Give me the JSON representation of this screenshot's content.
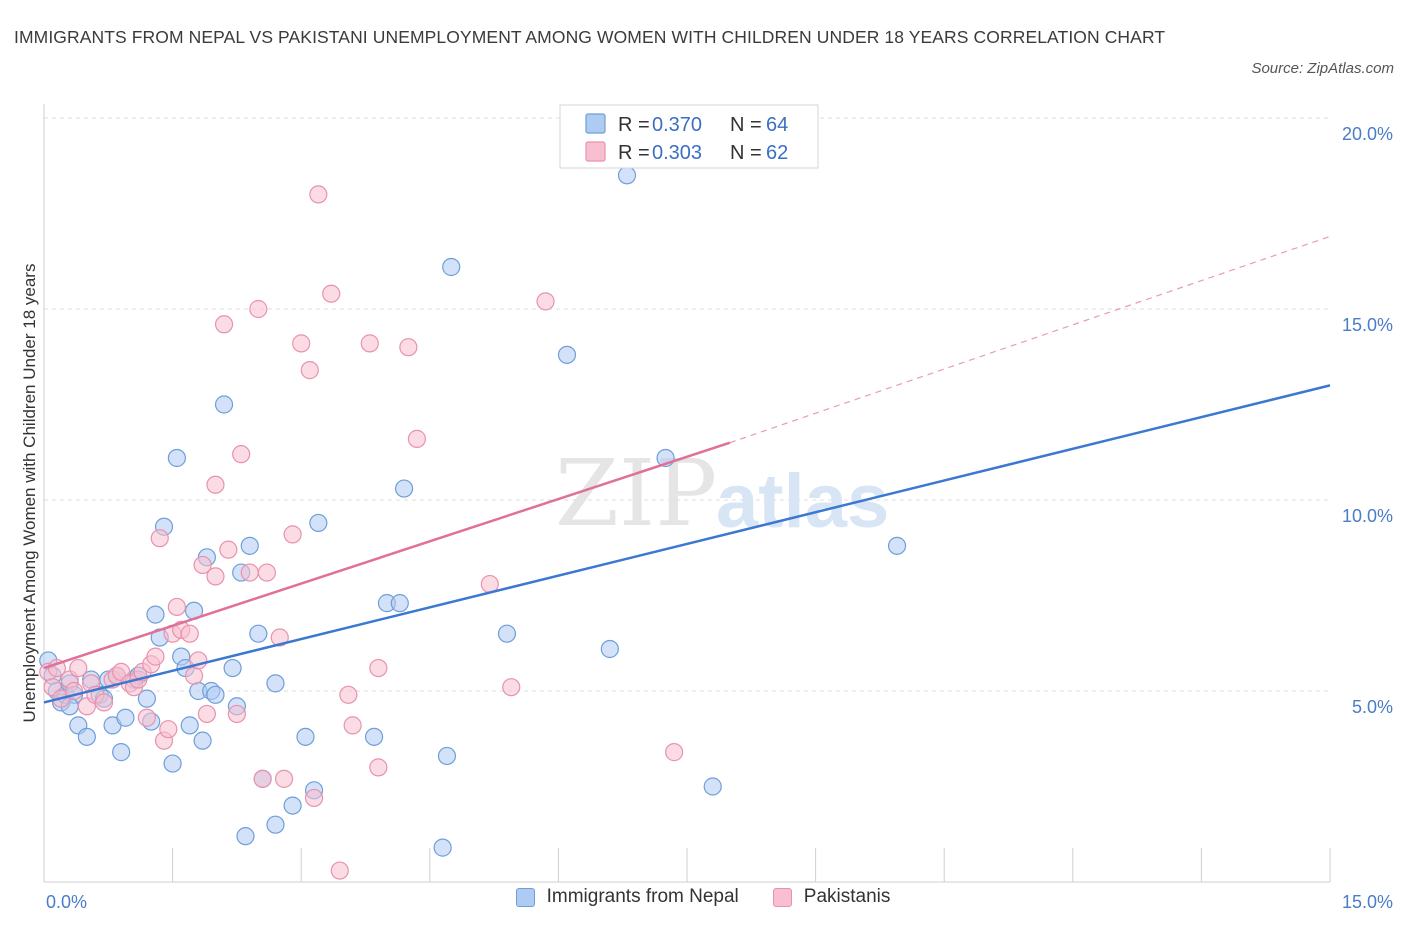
{
  "header": {
    "title": "IMMIGRANTS FROM NEPAL VS PAKISTANI UNEMPLOYMENT AMONG WOMEN WITH CHILDREN UNDER 18 YEARS CORRELATION CHART",
    "source": "Source: ZipAtlas.com"
  },
  "watermark": {
    "zip": "ZIP",
    "atlas": "atlas"
  },
  "legend": {
    "rows": [
      {
        "r_label": "R = ",
        "r_value": "0.370",
        "n_label": "N = ",
        "n_value": "64"
      },
      {
        "r_label": "R = ",
        "r_value": "0.303",
        "n_label": "N = ",
        "n_value": "62"
      }
    ]
  },
  "colors": {
    "nepal_fill": "#aecbf2",
    "nepal_stroke": "#6f9fd9",
    "nepal_line": "#3b78d0",
    "pak_fill": "#f7bfd0",
    "pak_stroke": "#e892ae",
    "pak_line": "#e07099",
    "grid": "#dddddd"
  },
  "chart_data": {
    "type": "scatter",
    "title": "IMMIGRANTS FROM NEPAL VS PAKISTANI UNEMPLOYMENT AMONG WOMEN WITH CHILDREN UNDER 18 YEARS CORRELATION CHART",
    "xlabel": "",
    "ylabel": "Unemployment Among Women with Children Under 18 years",
    "xlim": [
      0,
      15
    ],
    "ylim": [
      0,
      20
    ],
    "x_ticks": [
      "0.0%",
      "15.0%"
    ],
    "y_ticks": [
      {
        "value": 5,
        "label": "5.0%"
      },
      {
        "value": 10,
        "label": "10.0%"
      },
      {
        "value": 15,
        "label": "15.0%"
      },
      {
        "value": 20,
        "label": "20.0%"
      }
    ],
    "series": [
      {
        "name": "Immigrants from Nepal",
        "R": 0.37,
        "N": 64,
        "trend": {
          "x0": 0,
          "y0": 4.7,
          "x1": 15,
          "y1": 13.0
        },
        "points": [
          [
            0.05,
            5.8
          ],
          [
            0.1,
            5.4
          ],
          [
            0.15,
            5.0
          ],
          [
            0.2,
            4.7
          ],
          [
            0.25,
            4.9
          ],
          [
            0.3,
            5.2
          ],
          [
            0.35,
            4.9
          ],
          [
            0.4,
            4.1
          ],
          [
            0.5,
            3.8
          ],
          [
            0.55,
            5.3
          ],
          [
            0.65,
            4.9
          ],
          [
            0.75,
            5.3
          ],
          [
            0.8,
            4.1
          ],
          [
            0.85,
            5.4
          ],
          [
            0.9,
            3.4
          ],
          [
            0.95,
            4.3
          ],
          [
            1.05,
            5.3
          ],
          [
            1.1,
            5.4
          ],
          [
            1.2,
            4.8
          ],
          [
            1.25,
            4.2
          ],
          [
            1.3,
            7.0
          ],
          [
            1.35,
            6.4
          ],
          [
            1.4,
            9.3
          ],
          [
            1.5,
            3.1
          ],
          [
            1.55,
            11.1
          ],
          [
            1.6,
            5.9
          ],
          [
            1.65,
            5.6
          ],
          [
            1.7,
            4.1
          ],
          [
            1.75,
            7.1
          ],
          [
            1.8,
            5.0
          ],
          [
            1.85,
            3.7
          ],
          [
            1.9,
            8.5
          ],
          [
            1.95,
            5.0
          ],
          [
            2.0,
            4.9
          ],
          [
            2.1,
            12.5
          ],
          [
            2.2,
            5.6
          ],
          [
            2.25,
            4.6
          ],
          [
            2.3,
            8.1
          ],
          [
            2.35,
            1.2
          ],
          [
            2.4,
            8.8
          ],
          [
            2.5,
            6.5
          ],
          [
            2.55,
            2.7
          ],
          [
            2.7,
            5.2
          ],
          [
            2.7,
            1.5
          ],
          [
            2.9,
            2.0
          ],
          [
            3.05,
            3.8
          ],
          [
            3.15,
            2.4
          ],
          [
            3.2,
            9.4
          ],
          [
            3.85,
            3.8
          ],
          [
            4.0,
            7.3
          ],
          [
            4.15,
            7.3
          ],
          [
            4.2,
            10.3
          ],
          [
            4.65,
            0.9
          ],
          [
            4.7,
            3.3
          ],
          [
            4.75,
            16.1
          ],
          [
            5.4,
            6.5
          ],
          [
            6.1,
            13.8
          ],
          [
            6.6,
            6.1
          ],
          [
            6.8,
            18.5
          ],
          [
            7.25,
            11.1
          ],
          [
            7.8,
            2.5
          ],
          [
            9.95,
            8.8
          ],
          [
            0.3,
            4.6
          ],
          [
            0.7,
            4.8
          ]
        ]
      },
      {
        "name": "Pakistanis",
        "R": 0.303,
        "N": 62,
        "trend": {
          "x0": 0,
          "y0": 5.6,
          "x1": 8.0,
          "y1": 11.5
        },
        "trend_dashed": {
          "x0": 8.0,
          "y0": 11.5,
          "x1": 15,
          "y1": 16.9
        },
        "points": [
          [
            0.05,
            5.5
          ],
          [
            0.1,
            5.1
          ],
          [
            0.15,
            5.6
          ],
          [
            0.2,
            4.8
          ],
          [
            0.3,
            5.3
          ],
          [
            0.35,
            5.0
          ],
          [
            0.4,
            5.6
          ],
          [
            0.5,
            4.6
          ],
          [
            0.55,
            5.2
          ],
          [
            0.6,
            4.9
          ],
          [
            0.7,
            4.7
          ],
          [
            0.8,
            5.3
          ],
          [
            0.85,
            5.4
          ],
          [
            0.9,
            5.5
          ],
          [
            1.0,
            5.2
          ],
          [
            1.05,
            5.1
          ],
          [
            1.1,
            5.3
          ],
          [
            1.15,
            5.5
          ],
          [
            1.2,
            4.3
          ],
          [
            1.25,
            5.7
          ],
          [
            1.3,
            5.9
          ],
          [
            1.35,
            9.0
          ],
          [
            1.4,
            3.7
          ],
          [
            1.45,
            4.0
          ],
          [
            1.5,
            6.5
          ],
          [
            1.55,
            7.2
          ],
          [
            1.6,
            6.6
          ],
          [
            1.7,
            6.5
          ],
          [
            1.75,
            5.4
          ],
          [
            1.8,
            5.8
          ],
          [
            1.85,
            8.3
          ],
          [
            1.9,
            4.4
          ],
          [
            2.0,
            10.4
          ],
          [
            2.0,
            8.0
          ],
          [
            2.1,
            14.6
          ],
          [
            2.15,
            8.7
          ],
          [
            2.25,
            4.4
          ],
          [
            2.3,
            11.2
          ],
          [
            2.4,
            8.1
          ],
          [
            2.5,
            15.0
          ],
          [
            2.55,
            2.7
          ],
          [
            2.6,
            8.1
          ],
          [
            2.75,
            6.4
          ],
          [
            2.8,
            2.7
          ],
          [
            2.9,
            9.1
          ],
          [
            3.0,
            14.1
          ],
          [
            3.1,
            13.4
          ],
          [
            3.15,
            2.2
          ],
          [
            3.2,
            18.0
          ],
          [
            3.35,
            15.4
          ],
          [
            3.45,
            0.3
          ],
          [
            3.55,
            4.9
          ],
          [
            3.6,
            4.1
          ],
          [
            3.8,
            14.1
          ],
          [
            3.9,
            5.6
          ],
          [
            3.9,
            3.0
          ],
          [
            4.25,
            14.0
          ],
          [
            4.35,
            11.6
          ],
          [
            5.2,
            7.8
          ],
          [
            5.45,
            5.1
          ],
          [
            5.85,
            15.2
          ],
          [
            7.35,
            3.4
          ]
        ]
      }
    ],
    "legend_position": "top-center",
    "grid": true
  }
}
